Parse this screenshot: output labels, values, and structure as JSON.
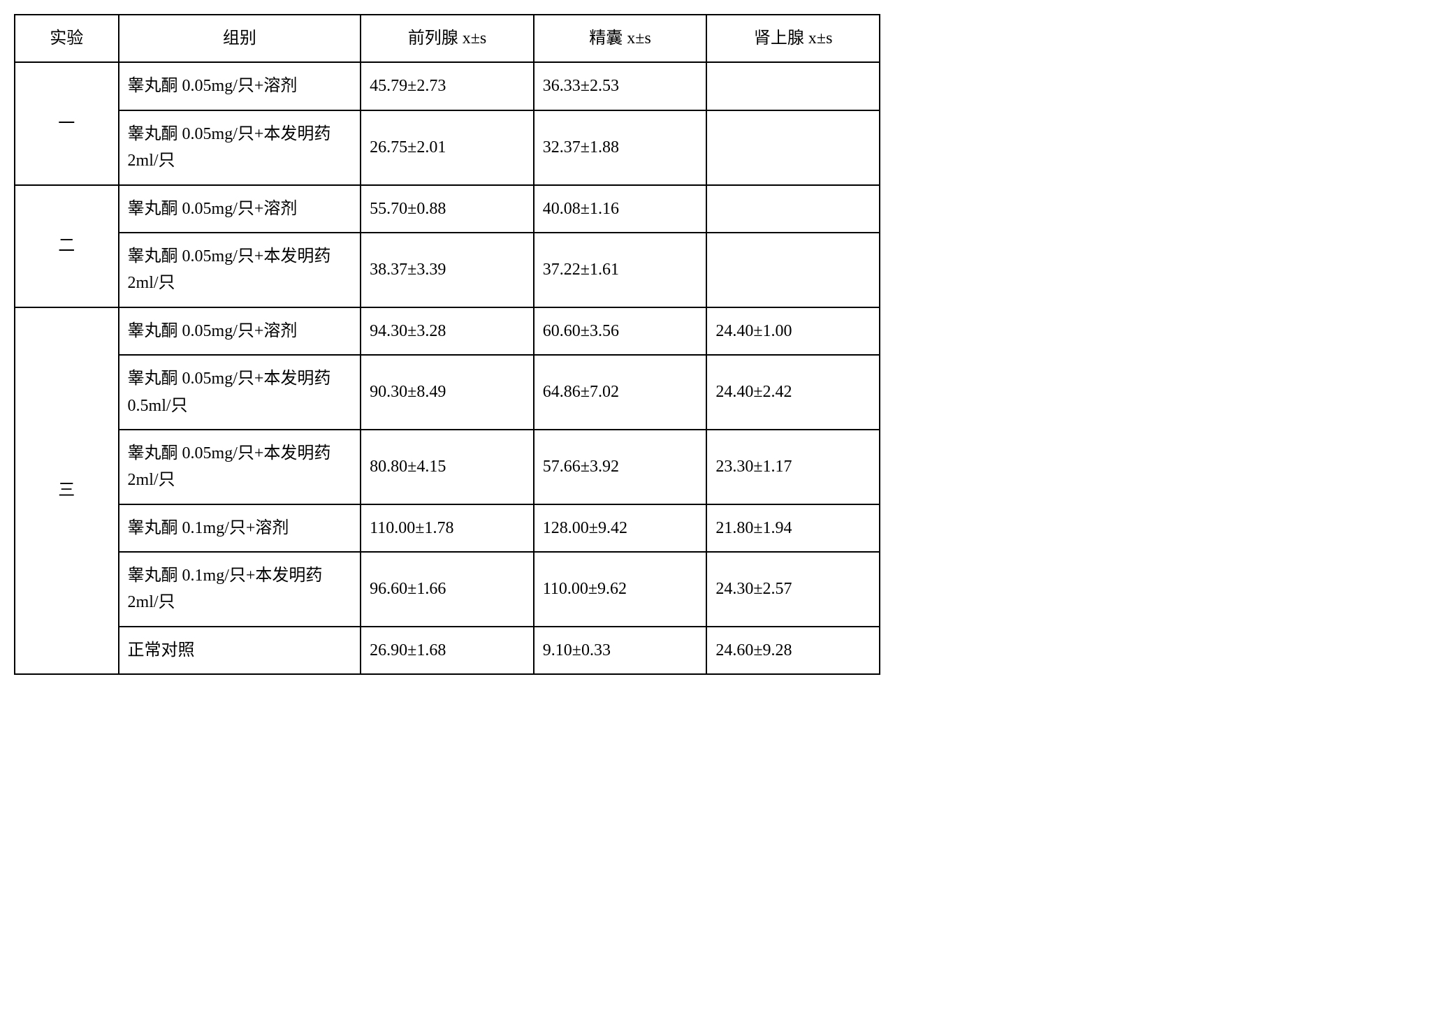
{
  "headers": {
    "experiment": "实验",
    "group": "组别",
    "prostate": "前列腺 x±s",
    "seminal": "精囊 x±s",
    "adrenal": "肾上腺 x±s"
  },
  "experiments": [
    {
      "label": "一",
      "rows": [
        {
          "group": "睾丸酮 0.05mg/只+溶剂",
          "prostate": "45.79±2.73",
          "seminal": "36.33±2.53",
          "adrenal": ""
        },
        {
          "group": "睾丸酮 0.05mg/只+本发明药 2ml/只",
          "prostate": "26.75±2.01",
          "seminal": "32.37±1.88",
          "adrenal": ""
        }
      ]
    },
    {
      "label": "二",
      "rows": [
        {
          "group": "睾丸酮 0.05mg/只+溶剂",
          "prostate": "55.70±0.88",
          "seminal": "40.08±1.16",
          "adrenal": ""
        },
        {
          "group": "睾丸酮 0.05mg/只+本发明药 2ml/只",
          "prostate": "38.37±3.39",
          "seminal": "37.22±1.61",
          "adrenal": ""
        }
      ]
    },
    {
      "label": "三",
      "rows": [
        {
          "group": "睾丸酮 0.05mg/只+溶剂",
          "prostate": "94.30±3.28",
          "seminal": "60.60±3.56",
          "adrenal": "24.40±1.00"
        },
        {
          "group": "睾丸酮 0.05mg/只+本发明药 0.5ml/只",
          "prostate": "90.30±8.49",
          "seminal": "64.86±7.02",
          "adrenal": "24.40±2.42"
        },
        {
          "group": "睾丸酮 0.05mg/只+本发明药 2ml/只",
          "prostate": "80.80±4.15",
          "seminal": "57.66±3.92",
          "adrenal": "23.30±1.17"
        },
        {
          "group": "睾丸酮 0.1mg/只+溶剂",
          "prostate": "110.00±1.78",
          "seminal": "128.00±9.42",
          "adrenal": "21.80±1.94"
        },
        {
          "group": "睾丸酮 0.1mg/只+本发明药 2ml/只",
          "prostate": "96.60±1.66",
          "seminal": "110.00±9.62",
          "adrenal": "24.30±2.57"
        },
        {
          "group": "正常对照",
          "prostate": "26.90±1.68",
          "seminal": "9.10±0.33",
          "adrenal": "24.60±9.28"
        }
      ]
    }
  ],
  "styling": {
    "border_color": "#000000",
    "background_color": "#ffffff",
    "text_color": "#000000",
    "font_size": 24,
    "border_width": 2
  }
}
